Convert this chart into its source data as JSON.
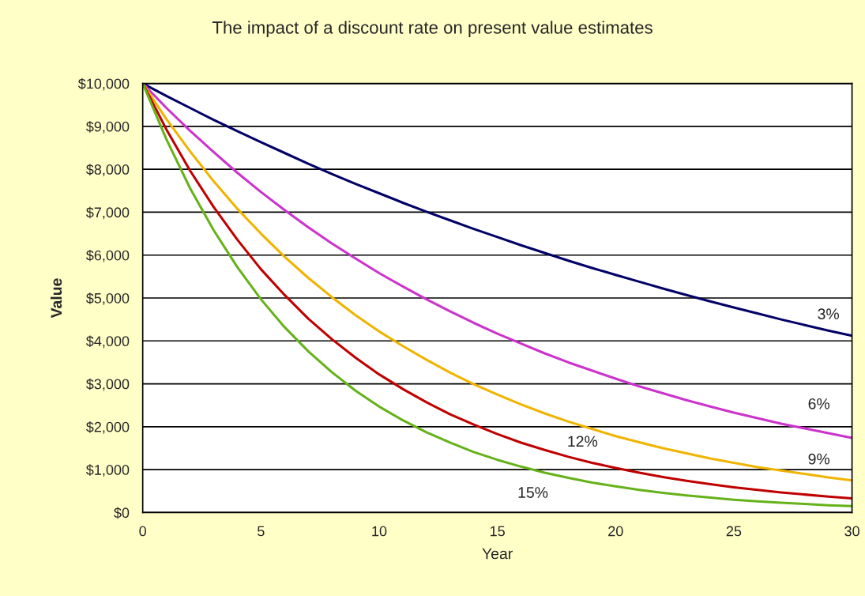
{
  "chart_data": {
    "type": "line",
    "title": "The impact of a discount rate on present value estimates",
    "xlabel": "Year",
    "ylabel": "Value",
    "x": [
      0,
      1,
      2,
      3,
      4,
      5,
      6,
      7,
      8,
      9,
      10,
      11,
      12,
      13,
      14,
      15,
      16,
      17,
      18,
      19,
      20,
      21,
      22,
      23,
      24,
      25,
      26,
      27,
      28,
      29,
      30
    ],
    "series": [
      {
        "color": "#000066",
        "values": [
          10000,
          9710,
          9430,
          9150,
          8890,
          8630,
          8380,
          8130,
          7890,
          7660,
          7440,
          7220,
          7010,
          6810,
          6610,
          6420,
          6230,
          6050,
          5870,
          5700,
          5540,
          5380,
          5220,
          5070,
          4920,
          4780,
          4640,
          4500,
          4370,
          4240,
          4120
        ]
      },
      {
        "color": "#cc33cc",
        "values": [
          10000,
          9430,
          8900,
          8400,
          7920,
          7470,
          7050,
          6650,
          6270,
          5920,
          5580,
          5270,
          4970,
          4690,
          4420,
          4170,
          3940,
          3710,
          3500,
          3310,
          3120,
          2940,
          2780,
          2620,
          2470,
          2330,
          2200,
          2070,
          1960,
          1850,
          1740
        ]
      },
      {
        "color": "#f0b400",
        "values": [
          10000,
          9170,
          8420,
          7720,
          7080,
          6500,
          5960,
          5470,
          5020,
          4600,
          4220,
          3880,
          3560,
          3260,
          2990,
          2750,
          2520,
          2310,
          2120,
          1950,
          1780,
          1640,
          1500,
          1380,
          1260,
          1160,
          1060,
          980,
          900,
          820,
          750
        ]
      },
      {
        "color": "#c00000",
        "values": [
          10000,
          8930,
          7970,
          7120,
          6360,
          5670,
          5070,
          4520,
          4040,
          3610,
          3220,
          2880,
          2570,
          2290,
          2050,
          1830,
          1630,
          1460,
          1300,
          1160,
          1040,
          930,
          830,
          740,
          660,
          590,
          530,
          470,
          420,
          370,
          330
        ]
      },
      {
        "color": "#66b21a",
        "values": [
          10000,
          8700,
          7560,
          6580,
          5720,
          4970,
          4320,
          3760,
          3270,
          2840,
          2470,
          2150,
          1870,
          1630,
          1410,
          1230,
          1070,
          930,
          810,
          700,
          610,
          530,
          460,
          400,
          350,
          300,
          260,
          230,
          200,
          170,
          150
        ]
      }
    ],
    "annotations": [
      {
        "text": "3%",
        "x": 29,
        "y": 4240
      },
      {
        "text": "6%",
        "x": 28.6,
        "y": 1890
      },
      {
        "text": "9%",
        "x": 28.6,
        "y": 860
      },
      {
        "text": "12%",
        "x": 18.6,
        "y": 1220
      },
      {
        "text": "15%",
        "x": 16.5,
        "y": 1000
      }
    ],
    "xlim": [
      0,
      30
    ],
    "xticks": [
      0,
      5,
      10,
      15,
      20,
      25,
      30
    ],
    "ylim": [
      0,
      10000
    ],
    "yticks": [
      {
        "value": 0,
        "label": "$0"
      },
      {
        "value": 1000,
        "label": "$1,000"
      },
      {
        "value": 2000,
        "label": "$2,000"
      },
      {
        "value": 3000,
        "label": "$3,000"
      },
      {
        "value": 4000,
        "label": "$4,000"
      },
      {
        "value": 5000,
        "label": "$5,000"
      },
      {
        "value": 6000,
        "label": "$6,000"
      },
      {
        "value": 7000,
        "label": "$7,000"
      },
      {
        "value": 8000,
        "label": "$8,000"
      },
      {
        "value": 9000,
        "label": "$9,000"
      },
      {
        "value": 10000,
        "label": "$10,000"
      }
    ],
    "grid": "y",
    "legend": false,
    "marker": "none",
    "line_style": "solid"
  }
}
